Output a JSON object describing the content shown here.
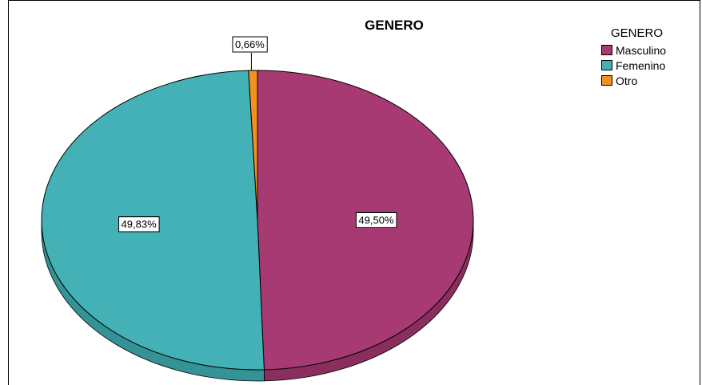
{
  "chart_data": {
    "type": "pie",
    "title": "GENERO",
    "legend_title": "GENERO",
    "legend_position": "top-right",
    "categories": [
      "Masculino",
      "Femenino",
      "Otro"
    ],
    "values": [
      49.5,
      49.83,
      0.66
    ],
    "labels": [
      "49,50%",
      "49,83%",
      "0,66%"
    ],
    "colors": [
      "#a83a73",
      "#43b1b5",
      "#f0921e"
    ],
    "side_colors": [
      "#8a2e5e",
      "#349396",
      "#c77614"
    ]
  }
}
